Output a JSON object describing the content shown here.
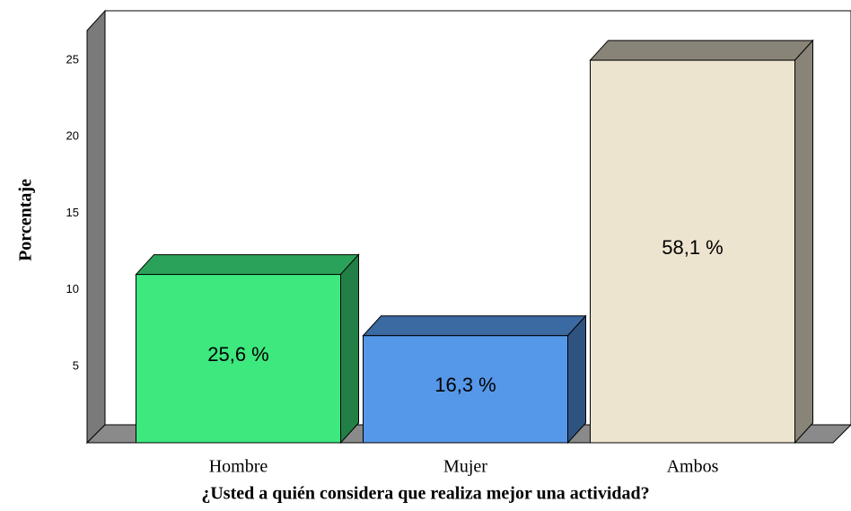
{
  "chart_data": {
    "type": "bar3d",
    "y_label": "Porcentaje",
    "x_label": "¿Usted a quién considera que realiza mejor una actividad?",
    "categories": [
      "Hombre",
      "Mujer",
      "Ambos"
    ],
    "values": [
      11,
      7,
      25
    ],
    "bar_texts": [
      "25,6 %",
      "16,3 %",
      "58,1 %"
    ],
    "colors": [
      "#3de87f",
      "#5597e8",
      "#ede4cf"
    ],
    "ylim": [
      0,
      27
    ],
    "yticks": [
      5,
      10,
      15,
      20,
      25
    ]
  }
}
